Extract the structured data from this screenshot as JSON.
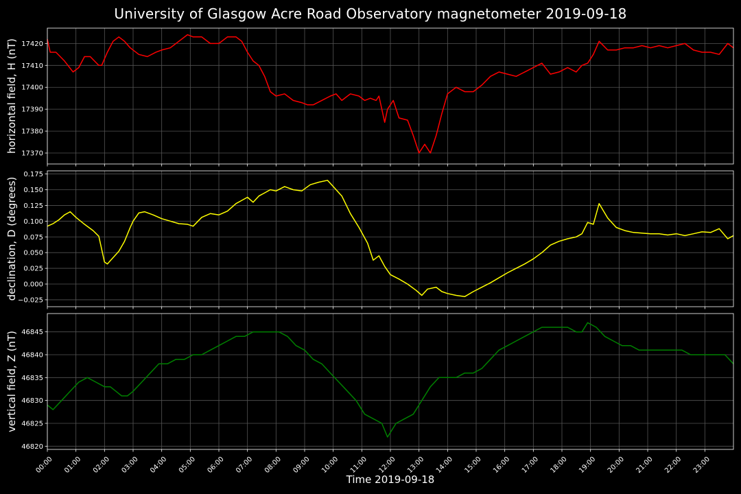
{
  "title": "University of Glasgow Acre Road Observatory magnetometer 2019-09-18",
  "xlabel": "Time 2019-09-18",
  "colors": {
    "background": "#000000",
    "grid": "#555555",
    "H": "#ff0000",
    "D": "#ffff00",
    "Z": "#008000"
  },
  "chart_data": [
    {
      "type": "line",
      "ylabel": "horizontal field, H (nT)",
      "ylim": [
        17365,
        17427
      ],
      "yticks": [
        17370,
        17380,
        17390,
        17400,
        17410,
        17420
      ],
      "xlim": [
        0,
        24
      ],
      "xticks": [
        "00:00",
        "01:00",
        "02:00",
        "03:00",
        "04:00",
        "05:00",
        "06:00",
        "07:00",
        "08:00",
        "09:00",
        "10:00",
        "11:00",
        "12:00",
        "13:00",
        "14:00",
        "15:00",
        "16:00",
        "17:00",
        "18:00",
        "19:00",
        "20:00",
        "21:00",
        "22:00",
        "23:00"
      ],
      "grid": true,
      "series": [
        {
          "color": "#ff0000",
          "x": [
            0,
            0.1,
            0.3,
            0.6,
            0.9,
            1.1,
            1.3,
            1.5,
            1.8,
            1.9,
            2.1,
            2.3,
            2.5,
            2.7,
            2.9,
            3.2,
            3.5,
            3.8,
            4.0,
            4.3,
            4.6,
            4.9,
            5.1,
            5.4,
            5.7,
            6.0,
            6.3,
            6.6,
            6.8,
            7.0,
            7.2,
            7.4,
            7.6,
            7.8,
            8.0,
            8.3,
            8.6,
            8.9,
            9.1,
            9.3,
            9.6,
            9.9,
            10.1,
            10.3,
            10.6,
            10.9,
            11.1,
            11.3,
            11.5,
            11.6,
            11.8,
            11.9,
            12.1,
            12.3,
            12.6,
            12.8,
            13.0,
            13.2,
            13.4,
            13.6,
            13.8,
            14.0,
            14.3,
            14.6,
            14.9,
            15.2,
            15.5,
            15.8,
            16.1,
            16.4,
            16.7,
            17.0,
            17.3,
            17.6,
            17.9,
            18.2,
            18.5,
            18.7,
            18.9,
            19.1,
            19.3,
            19.6,
            19.9,
            20.2,
            20.5,
            20.8,
            21.1,
            21.4,
            21.7,
            22.0,
            22.3,
            22.6,
            22.9,
            23.2,
            23.5,
            23.8,
            24.0
          ],
          "y": [
            17422,
            17416,
            17416,
            17412,
            17407,
            17409,
            17414,
            17414,
            17410,
            17410,
            17416,
            17421,
            17423,
            17421,
            17418,
            17415,
            17414,
            17416,
            17417,
            17418,
            17421,
            17424,
            17423,
            17423,
            17420,
            17420,
            17423,
            17423,
            17421,
            17416,
            17412,
            17410,
            17405,
            17398,
            17396,
            17397,
            17394,
            17393,
            17392,
            17392,
            17394,
            17396,
            17397,
            17394,
            17397,
            17396,
            17394,
            17395,
            17394,
            17396,
            17384,
            17390,
            17394,
            17386,
            17385,
            17378,
            17370,
            17374,
            17370,
            17378,
            17388,
            17397,
            17400,
            17398,
            17398,
            17401,
            17405,
            17407,
            17406,
            17405,
            17407,
            17409,
            17411,
            17406,
            17407,
            17409,
            17407,
            17410,
            17411,
            17415,
            17421,
            17417,
            17417,
            17418,
            17418,
            17419,
            17418,
            17419,
            17418,
            17419,
            17420,
            17417,
            17416,
            17416,
            17415,
            17420,
            17418
          ]
        }
      ]
    },
    {
      "type": "line",
      "ylabel": "declination, D (degrees)",
      "ylim": [
        -0.036,
        0.18
      ],
      "yticks": [
        -0.025,
        0.0,
        0.025,
        0.05,
        0.075,
        0.1,
        0.125,
        0.15,
        0.175
      ],
      "ytick_labels": [
        "−0.025",
        "0.000",
        "0.025",
        "0.050",
        "0.075",
        "0.100",
        "0.125",
        "0.150",
        "0.175"
      ],
      "xlim": [
        0,
        24
      ],
      "grid": true,
      "series": [
        {
          "color": "#ffff00",
          "x": [
            0,
            0.2,
            0.4,
            0.6,
            0.8,
            1.0,
            1.3,
            1.6,
            1.8,
            2.0,
            2.1,
            2.3,
            2.5,
            2.7,
            2.9,
            3.0,
            3.2,
            3.4,
            3.7,
            4.0,
            4.3,
            4.6,
            4.9,
            5.1,
            5.4,
            5.7,
            6.0,
            6.3,
            6.6,
            6.8,
            7.0,
            7.2,
            7.4,
            7.6,
            7.8,
            8.0,
            8.3,
            8.6,
            8.9,
            9.2,
            9.5,
            9.8,
            10.0,
            10.3,
            10.6,
            10.9,
            11.2,
            11.4,
            11.6,
            11.8,
            12.0,
            12.3,
            12.6,
            12.9,
            13.1,
            13.3,
            13.6,
            13.8,
            14.0,
            14.3,
            14.6,
            14.9,
            15.2,
            15.5,
            15.8,
            16.1,
            16.4,
            16.7,
            17.0,
            17.3,
            17.6,
            17.9,
            18.2,
            18.5,
            18.7,
            18.9,
            19.1,
            19.3,
            19.6,
            19.9,
            20.2,
            20.5,
            20.8,
            21.1,
            21.4,
            21.7,
            22.0,
            22.3,
            22.6,
            22.9,
            23.2,
            23.5,
            23.8,
            24.0
          ],
          "y": [
            0.092,
            0.096,
            0.102,
            0.11,
            0.115,
            0.106,
            0.095,
            0.085,
            0.076,
            0.035,
            0.032,
            0.042,
            0.052,
            0.068,
            0.09,
            0.1,
            0.113,
            0.115,
            0.11,
            0.104,
            0.1,
            0.096,
            0.095,
            0.092,
            0.106,
            0.112,
            0.11,
            0.116,
            0.128,
            0.133,
            0.138,
            0.13,
            0.14,
            0.145,
            0.15,
            0.148,
            0.155,
            0.15,
            0.148,
            0.158,
            0.162,
            0.165,
            0.155,
            0.14,
            0.112,
            0.09,
            0.065,
            0.038,
            0.045,
            0.028,
            0.015,
            0.008,
            0.0,
            -0.01,
            -0.018,
            -0.008,
            -0.005,
            -0.012,
            -0.015,
            -0.018,
            -0.02,
            -0.012,
            -0.005,
            0.002,
            0.01,
            0.018,
            0.025,
            0.032,
            0.04,
            0.05,
            0.062,
            0.068,
            0.072,
            0.075,
            0.08,
            0.098,
            0.095,
            0.128,
            0.105,
            0.09,
            0.085,
            0.082,
            0.081,
            0.08,
            0.08,
            0.078,
            0.08,
            0.077,
            0.08,
            0.083,
            0.082,
            0.088,
            0.072,
            0.077
          ]
        }
      ]
    },
    {
      "type": "line",
      "ylabel": "vertical field, Z (nT)",
      "ylim": [
        46819.3,
        46849
      ],
      "yticks": [
        46820,
        46825,
        46830,
        46835,
        46840,
        46845
      ],
      "xlim": [
        0,
        24
      ],
      "grid": true,
      "series": [
        {
          "color": "#008000",
          "x": [
            0,
            0.2,
            0.5,
            0.8,
            1.1,
            1.4,
            1.7,
            2.0,
            2.2,
            2.4,
            2.6,
            2.8,
            3.0,
            3.3,
            3.6,
            3.9,
            4.2,
            4.5,
            4.8,
            5.1,
            5.4,
            5.7,
            6.0,
            6.3,
            6.6,
            6.9,
            7.2,
            7.5,
            7.8,
            8.1,
            8.4,
            8.7,
            9.0,
            9.3,
            9.6,
            9.9,
            10.2,
            10.5,
            10.8,
            11.1,
            11.4,
            11.7,
            11.9,
            12.2,
            12.5,
            12.8,
            13.1,
            13.4,
            13.7,
            14.0,
            14.3,
            14.6,
            14.9,
            15.2,
            15.5,
            15.8,
            16.1,
            16.4,
            16.7,
            17.0,
            17.3,
            17.6,
            17.9,
            18.2,
            18.5,
            18.7,
            18.9,
            19.2,
            19.5,
            19.8,
            20.1,
            20.4,
            20.7,
            21.0,
            21.3,
            21.6,
            21.9,
            22.2,
            22.5,
            22.8,
            23.1,
            23.4,
            23.7,
            24.0
          ],
          "y": [
            46829,
            46828,
            46830,
            46832,
            46834,
            46835,
            46834,
            46833,
            46833,
            46832,
            46831,
            46831,
            46832,
            46834,
            46836,
            46838,
            46838,
            46839,
            46839,
            46840,
            46840,
            46841,
            46842,
            46843,
            46844,
            46844,
            46845,
            46845,
            46845,
            46845,
            46844,
            46842,
            46841,
            46839,
            46838,
            46836,
            46834,
            46832,
            46830,
            46827,
            46826,
            46825,
            46822,
            46825,
            46826,
            46827,
            46830,
            46833,
            46835,
            46835,
            46835,
            46836,
            46836,
            46837,
            46839,
            46841,
            46842,
            46843,
            46844,
            46845,
            46846,
            46846,
            46846,
            46846,
            46845,
            46845,
            46847,
            46846,
            46844,
            46843,
            46842,
            46842,
            46841,
            46841,
            46841,
            46841,
            46841,
            46841,
            46840,
            46840,
            46840,
            46840,
            46840,
            46838
          ]
        }
      ]
    }
  ]
}
